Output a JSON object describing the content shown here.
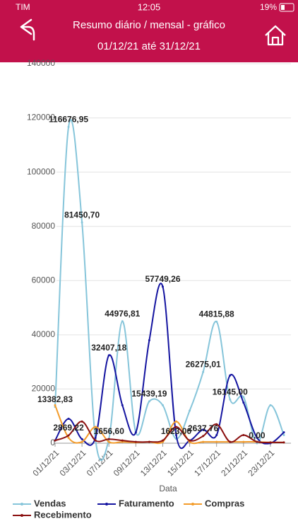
{
  "status_bar": {
    "carrier": "TIM",
    "time": "12:05",
    "battery": "19%"
  },
  "header": {
    "title": "Resumo diário / mensal - gráfico",
    "period": "01/12/21 até 31/12/21"
  },
  "chart_data": {
    "type": "line",
    "categories": [
      "01/12/21",
      null,
      "03/12/21",
      null,
      "07/12/21",
      null,
      "09/12/21",
      null,
      "13/12/21",
      null,
      "15/12/21",
      null,
      "17/12/21",
      null,
      "21/12/21",
      null,
      "23/12/21",
      null
    ],
    "xlabel": "Data",
    "ylim": [
      0,
      140000
    ],
    "yticks": [
      0,
      20000,
      40000,
      60000,
      80000,
      100000,
      120000,
      140000
    ],
    "grid": true,
    "legend": "bottom",
    "series": [
      {
        "name": "Vendas",
        "color": "#86c5da",
        "values": [
          13382.83,
          116676.95,
          81450.7,
          1500,
          1656.6,
          44976.81,
          4000,
          15439.19,
          14000,
          1623.0,
          12000,
          26275.01,
          44815.88,
          16145.0,
          17000,
          0.0,
          14000,
          3000
        ],
        "value_labels": [
          "13382,83",
          "116676,95",
          "81450,70",
          null,
          "1656,60",
          "44976,81",
          null,
          "15439,19",
          null,
          "1623,00",
          null,
          "26275,01",
          "44815,88",
          "16145,00",
          null,
          "0,00",
          null,
          null
        ]
      },
      {
        "name": "Faturamento",
        "color": "#1414a0",
        "values": [
          1000,
          9000,
          1500,
          2000,
          32407.18,
          14000,
          4000,
          38000,
          57749.26,
          3000,
          1000,
          5000,
          3000,
          25000,
          15000,
          2000,
          0,
          4000
        ],
        "value_labels": [
          null,
          null,
          null,
          null,
          "32407,18",
          null,
          null,
          null,
          "57749,26",
          null,
          null,
          null,
          null,
          null,
          null,
          null,
          null,
          null
        ]
      },
      {
        "name": "Compras",
        "color": "#f39c2b",
        "values": [
          14000,
          2000,
          500,
          6000,
          500,
          500,
          300,
          500,
          500,
          8000,
          500,
          500,
          500,
          500,
          500,
          500,
          300,
          300
        ]
      },
      {
        "name": "Recebimento",
        "color": "#8b1010",
        "values": [
          1000,
          2869.22,
          8000,
          1000,
          1500,
          1000,
          500,
          500,
          1000,
          6000,
          1000,
          2637.76,
          7000,
          500,
          3000,
          500,
          300,
          300
        ],
        "value_labels": [
          null,
          "2869,22",
          null,
          null,
          null,
          null,
          null,
          null,
          null,
          null,
          null,
          "2637,76",
          null,
          null,
          null,
          null,
          null,
          null
        ]
      }
    ]
  }
}
